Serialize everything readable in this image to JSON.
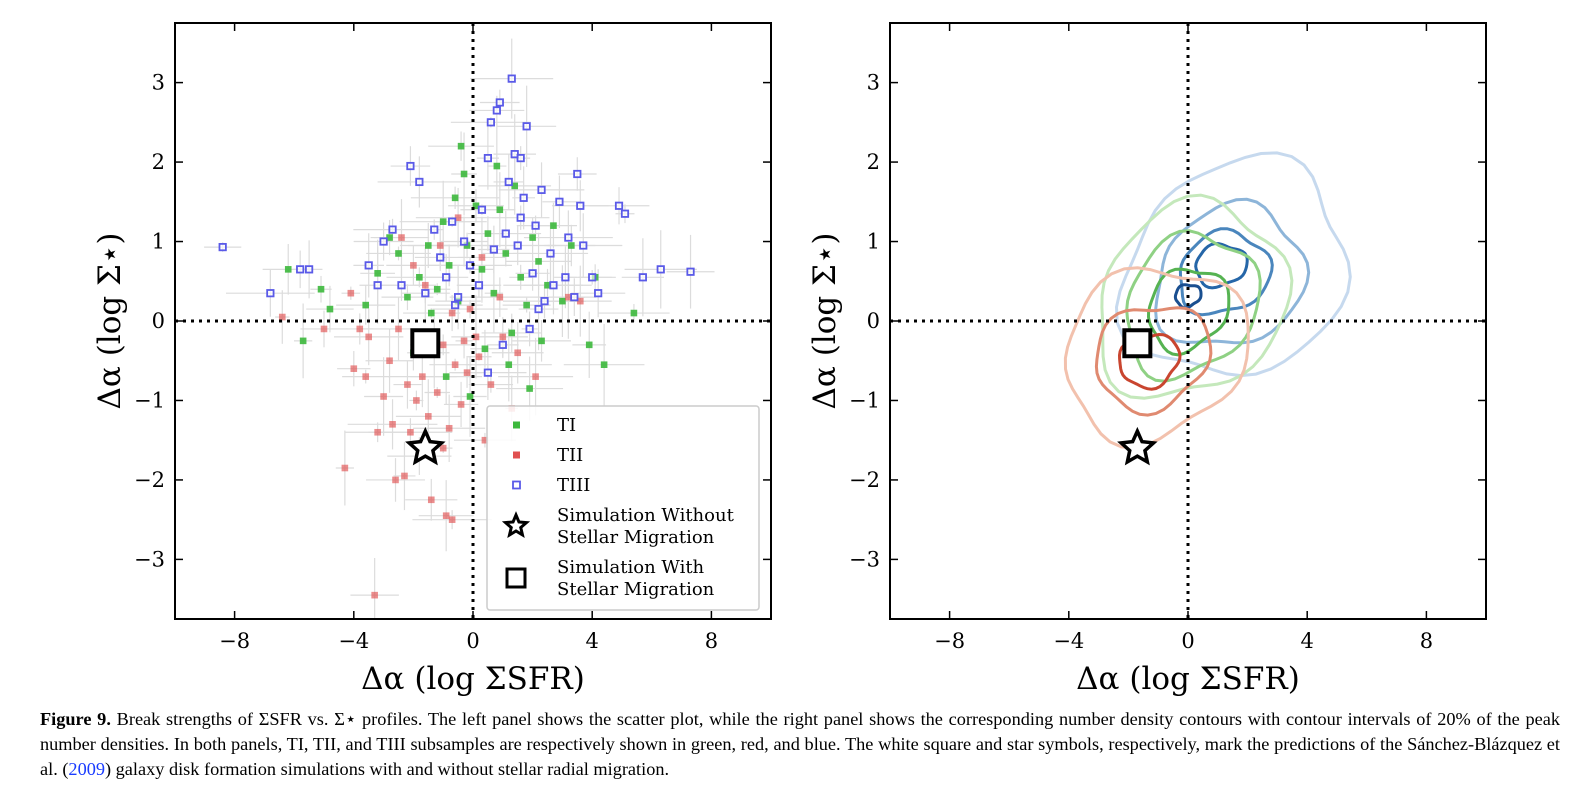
{
  "caption": {
    "figure_number": "Figure 9.",
    "text_before_ref": "Break strengths of ΣSFR vs. Σ⋆ profiles. The left panel shows the scatter plot, while the right panel shows the corresponding number density contours with contour intervals of 20% of the peak number densities. In both panels, TI, TII, and TIII subsamples are respectively shown in green, red, and blue. The white square and star symbols, respectively, mark the predictions of the Sánchez-Blázquez et al. (",
    "ref_year": "2009",
    "text_after_ref": ") galaxy disk formation simulations with and without stellar radial migration."
  },
  "colors": {
    "TI": "#3cb83c",
    "TII": "#e05050",
    "TIII": "#5a5ae8",
    "errorbar": "#dcdcdc"
  },
  "chart_data": [
    {
      "type": "scatter",
      "panel": "left",
      "xlabel": "Δα (log ΣSFR)",
      "ylabel": "Δα (log Σ⋆)",
      "xlim": [
        -10,
        10
      ],
      "ylim": [
        -3.75,
        3.75
      ],
      "xticks": [
        "−8",
        "−4",
        "0",
        "4",
        "8"
      ],
      "xtick_values": [
        -8,
        -4,
        0,
        4,
        8
      ],
      "yticks": [
        "3",
        "2",
        "1",
        "0",
        "−1",
        "−2",
        "−3"
      ],
      "ytick_values": [
        3,
        2,
        1,
        0,
        -1,
        -2,
        -3
      ],
      "reference_lines": {
        "x": 0,
        "y": 0,
        "style": "dotted"
      },
      "legend": {
        "placement": "lower-right",
        "entries": [
          "TI",
          "TII",
          "TIII",
          "Simulation Without",
          "Stellar Migration",
          "Simulation With",
          "Stellar Migration"
        ]
      },
      "series": [
        {
          "name": "TI",
          "marker": "filled-square",
          "color": "#3cb83c",
          "points": [
            [
              -6.2,
              0.65
            ],
            [
              -5.1,
              0.4
            ],
            [
              -4.8,
              0.15
            ],
            [
              -5.7,
              -0.25
            ],
            [
              -3.6,
              0.2
            ],
            [
              -3.2,
              0.6
            ],
            [
              -2.5,
              0.85
            ],
            [
              -2.2,
              0.3
            ],
            [
              -1.8,
              0.55
            ],
            [
              -1.5,
              0.95
            ],
            [
              -1.2,
              0.4
            ],
            [
              -1.0,
              1.25
            ],
            [
              -0.8,
              0.7
            ],
            [
              -0.6,
              1.55
            ],
            [
              -0.5,
              0.25
            ],
            [
              -0.4,
              2.2
            ],
            [
              -0.3,
              1.85
            ],
            [
              -0.2,
              0.95
            ],
            [
              0.1,
              1.45
            ],
            [
              0.3,
              0.65
            ],
            [
              0.5,
              1.1
            ],
            [
              0.7,
              0.35
            ],
            [
              0.9,
              1.4
            ],
            [
              1.1,
              0.85
            ],
            [
              1.3,
              -0.15
            ],
            [
              1.4,
              1.7
            ],
            [
              1.6,
              0.55
            ],
            [
              1.8,
              0.2
            ],
            [
              2.0,
              1.05
            ],
            [
              2.2,
              0.75
            ],
            [
              2.5,
              0.45
            ],
            [
              2.7,
              1.2
            ],
            [
              3.0,
              0.25
            ],
            [
              3.3,
              0.95
            ],
            [
              4.1,
              0.55
            ],
            [
              5.4,
              0.1
            ],
            [
              3.9,
              -0.3
            ],
            [
              4.4,
              -0.55
            ],
            [
              1.2,
              -0.55
            ],
            [
              -0.9,
              -0.7
            ],
            [
              -1.4,
              0.1
            ],
            [
              -2.8,
              1.05
            ],
            [
              0.4,
              -0.35
            ],
            [
              1.9,
              -0.85
            ],
            [
              -0.1,
              -0.95
            ],
            [
              -2.0,
              -0.4
            ],
            [
              2.3,
              -0.25
            ],
            [
              0.8,
              1.95
            ]
          ]
        },
        {
          "name": "TII",
          "marker": "filled-square",
          "color": "#e05050",
          "points": [
            [
              -3.3,
              -3.45
            ],
            [
              -2.6,
              -2.0
            ],
            [
              -2.3,
              -1.95
            ],
            [
              -2.1,
              -1.4
            ],
            [
              -1.9,
              -1.0
            ],
            [
              -1.7,
              -0.7
            ],
            [
              -1.5,
              -1.2
            ],
            [
              -1.3,
              -0.4
            ],
            [
              -1.2,
              -0.9
            ],
            [
              -1.0,
              -1.6
            ],
            [
              -0.9,
              -2.45
            ],
            [
              -0.7,
              -2.5
            ],
            [
              -0.6,
              -0.55
            ],
            [
              -0.4,
              -1.05
            ],
            [
              -0.3,
              -0.25
            ],
            [
              -0.2,
              -0.65
            ],
            [
              -0.1,
              0.15
            ],
            [
              0.2,
              -0.45
            ],
            [
              0.4,
              -1.5
            ],
            [
              0.6,
              -0.8
            ],
            [
              1.0,
              -0.2
            ],
            [
              1.3,
              -1.1
            ],
            [
              -2.8,
              -0.5
            ],
            [
              -3.0,
              -0.95
            ],
            [
              -3.5,
              -0.2
            ],
            [
              -4.0,
              -0.6
            ],
            [
              -4.3,
              -1.85
            ],
            [
              -4.1,
              0.35
            ],
            [
              -3.8,
              -0.1
            ],
            [
              -6.4,
              0.05
            ],
            [
              -5.0,
              -0.1
            ],
            [
              -2.4,
              1.05
            ],
            [
              -2.0,
              0.7
            ],
            [
              -1.6,
              0.45
            ],
            [
              -1.1,
              0.95
            ],
            [
              -0.5,
              1.3
            ],
            [
              0.3,
              0.8
            ],
            [
              0.9,
              0.3
            ],
            [
              1.5,
              -0.4
            ],
            [
              2.1,
              -0.7
            ],
            [
              3.2,
              0.3
            ],
            [
              3.6,
              0.25
            ],
            [
              -3.6,
              -0.7
            ],
            [
              -2.7,
              -1.3
            ],
            [
              -1.8,
              -1.7
            ],
            [
              -0.8,
              -1.35
            ],
            [
              -1.4,
              -2.25
            ],
            [
              -2.5,
              -0.1
            ],
            [
              -0.7,
              0.1
            ],
            [
              0.1,
              -0.2
            ],
            [
              -3.2,
              -1.4
            ],
            [
              -1.0,
              -0.3
            ],
            [
              -2.2,
              -0.8
            ]
          ]
        },
        {
          "name": "TIII",
          "marker": "open-square",
          "color": "#5a5ae8",
          "points": [
            [
              -8.4,
              0.93
            ],
            [
              -6.8,
              0.35
            ],
            [
              -5.8,
              0.65
            ],
            [
              -5.5,
              0.65
            ],
            [
              -3.5,
              0.7
            ],
            [
              -3.2,
              0.45
            ],
            [
              -3.0,
              1.0
            ],
            [
              -2.7,
              1.15
            ],
            [
              -2.1,
              1.95
            ],
            [
              -1.8,
              1.75
            ],
            [
              -1.3,
              1.15
            ],
            [
              -1.1,
              0.8
            ],
            [
              -0.9,
              0.55
            ],
            [
              -0.7,
              1.25
            ],
            [
              -0.5,
              0.3
            ],
            [
              -0.3,
              1.0
            ],
            [
              -0.1,
              0.7
            ],
            [
              0.2,
              0.45
            ],
            [
              0.3,
              1.4
            ],
            [
              0.5,
              2.05
            ],
            [
              0.6,
              2.5
            ],
            [
              0.8,
              2.65
            ],
            [
              0.9,
              2.75
            ],
            [
              1.1,
              1.1
            ],
            [
              1.2,
              1.75
            ],
            [
              1.3,
              3.05
            ],
            [
              1.4,
              2.1
            ],
            [
              1.5,
              0.95
            ],
            [
              1.6,
              2.05
            ],
            [
              1.7,
              1.55
            ],
            [
              1.8,
              2.45
            ],
            [
              2.0,
              0.6
            ],
            [
              2.1,
              1.2
            ],
            [
              2.3,
              1.65
            ],
            [
              2.6,
              0.85
            ],
            [
              2.9,
              1.5
            ],
            [
              3.1,
              0.55
            ],
            [
              3.2,
              1.05
            ],
            [
              3.5,
              1.85
            ],
            [
              3.6,
              1.45
            ],
            [
              3.4,
              0.3
            ],
            [
              3.7,
              0.95
            ],
            [
              4.2,
              0.35
            ],
            [
              4.9,
              1.45
            ],
            [
              5.1,
              1.35
            ],
            [
              5.7,
              0.55
            ],
            [
              6.3,
              0.65
            ],
            [
              7.3,
              0.62
            ],
            [
              4.0,
              0.55
            ],
            [
              2.4,
              0.25
            ],
            [
              1.0,
              -0.3
            ],
            [
              1.9,
              -0.1
            ],
            [
              2.2,
              0.15
            ],
            [
              0.5,
              -0.65
            ],
            [
              -0.6,
              0.2
            ],
            [
              -1.6,
              0.35
            ],
            [
              -2.4,
              0.45
            ],
            [
              0.7,
              0.9
            ],
            [
              1.6,
              1.3
            ],
            [
              2.7,
              0.45
            ]
          ]
        }
      ],
      "markers": [
        {
          "name": "Simulation Without Stellar Migration",
          "symbol": "open-star",
          "x": -1.6,
          "y": -1.6
        },
        {
          "name": "Simulation With Stellar Migration",
          "symbol": "open-square",
          "x": -1.6,
          "y": -0.28
        }
      ]
    },
    {
      "type": "contour",
      "panel": "right",
      "xlabel": "Δα (log ΣSFR)",
      "ylabel": "Δα (log Σ⋆)",
      "xlim": [
        -10,
        10
      ],
      "ylim": [
        -3.75,
        3.75
      ],
      "xticks": [
        "−8",
        "−4",
        "0",
        "4",
        "8"
      ],
      "xtick_values": [
        -8,
        -4,
        0,
        4,
        8
      ],
      "yticks": [
        "3",
        "2",
        "1",
        "0",
        "−1",
        "−2",
        "−3"
      ],
      "ytick_values": [
        3,
        2,
        1,
        0,
        -1,
        -2,
        -3
      ],
      "reference_lines": {
        "x": 0,
        "y": 0,
        "style": "dotted"
      },
      "contour_levels": "intervals of 20% of peak number density",
      "series": [
        {
          "name": "TIII",
          "levels": [
            {
              "cx": 1.6,
              "cy": 0.65,
              "rx": 3.9,
              "ry": 1.45,
              "color": "#c6d9ee"
            },
            {
              "cx": 1.4,
              "cy": 0.55,
              "rx": 2.6,
              "ry": 0.95,
              "color": "#8db5d9"
            },
            {
              "cx": 1.2,
              "cy": 0.6,
              "rx": 1.6,
              "ry": 0.55,
              "color": "#4a86bd"
            },
            {
              "cx": 1.1,
              "cy": 0.7,
              "rx": 0.9,
              "ry": 0.28,
              "color": "#2566a8"
            },
            {
              "cx": 0.0,
              "cy": 0.32,
              "rx": 0.45,
              "ry": 0.15,
              "color": "#1a4f90"
            }
          ]
        },
        {
          "name": "TI",
          "levels": [
            {
              "cx": 0.1,
              "cy": 0.25,
              "rx": 3.3,
              "ry": 1.3,
              "color": "#c4e8bb"
            },
            {
              "cx": 0.1,
              "cy": 0.2,
              "rx": 2.3,
              "ry": 0.95,
              "color": "#8fd184"
            },
            {
              "cx": 0.0,
              "cy": 0.15,
              "rx": 1.4,
              "ry": 0.55,
              "color": "#56b352"
            }
          ]
        },
        {
          "name": "TII",
          "levels": [
            {
              "cx": -1.1,
              "cy": -0.4,
              "rx": 3.2,
              "ry": 1.15,
              "color": "#f2c1ad"
            },
            {
              "cx": -1.2,
              "cy": -0.45,
              "rx": 2.0,
              "ry": 0.7,
              "color": "#e08a70"
            },
            {
              "cx": -1.3,
              "cy": -0.5,
              "rx": 1.05,
              "ry": 0.35,
              "color": "#c9452f"
            }
          ]
        }
      ],
      "markers": [
        {
          "name": "Simulation Without Stellar Migration",
          "symbol": "open-star",
          "x": -1.7,
          "y": -1.6
        },
        {
          "name": "Simulation With Stellar Migration",
          "symbol": "open-square",
          "x": -1.7,
          "y": -0.28
        }
      ]
    }
  ]
}
